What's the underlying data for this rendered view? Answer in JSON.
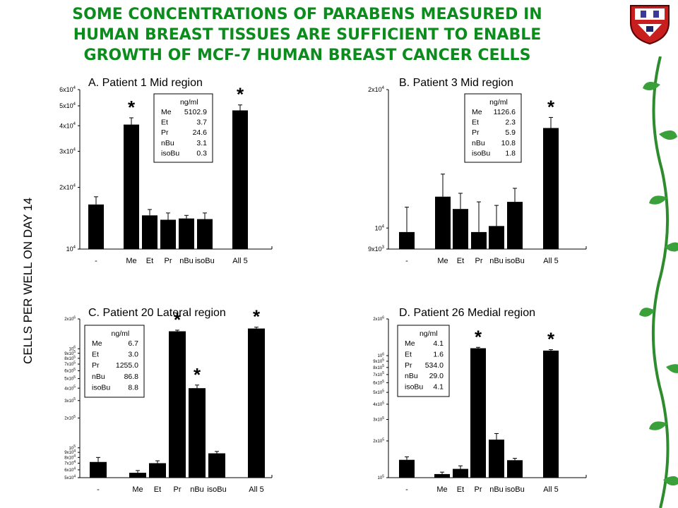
{
  "title_lines": [
    "SOME CONCENTRATIONS OF PARABENS MEASURED IN",
    "HUMAN BREAST TISSUES ARE SUFFICIENT TO ENABLE",
    "GROWTH OF MCF-7 HUMAN BREAST CANCER CELLS"
  ],
  "y_axis_label": "CELLS PER WELL ON DAY 14",
  "colors": {
    "title": "#0b8c1c",
    "bars": "#000000",
    "vine": "#2e8b2e"
  },
  "chart_data": [
    {
      "type": "bar",
      "title": "A. Patient 1 Mid region",
      "yscale": "log",
      "ylim": [
        10000,
        60000
      ],
      "yticks": [
        {
          "value": 10000,
          "label": "10",
          "exp": "4"
        },
        {
          "value": 20000,
          "label": "2x10",
          "exp": "4"
        },
        {
          "value": 30000,
          "label": "3x10",
          "exp": "4"
        },
        {
          "value": 40000,
          "label": "4x10",
          "exp": "4"
        },
        {
          "value": 50000,
          "label": "5x10",
          "exp": "4"
        },
        {
          "value": 60000,
          "label": "6x10",
          "exp": "4"
        }
      ],
      "categories": [
        "-",
        "Me",
        "Et",
        "Pr",
        "nBu",
        "isoBu",
        "All 5"
      ],
      "values": [
        16500,
        40500,
        14600,
        13900,
        14100,
        14000,
        47500
      ],
      "errors": [
        1500,
        3200,
        1000,
        1100,
        500,
        1000,
        3000
      ],
      "significant": [
        false,
        true,
        false,
        false,
        false,
        false,
        true
      ],
      "star": "*",
      "legend": {
        "header": "ng/ml",
        "rows": [
          [
            "Me",
            "5102.9"
          ],
          [
            "Et",
            "3.7"
          ],
          [
            "Pr",
            "24.6"
          ],
          [
            "nBu",
            "3.1"
          ],
          [
            "isoBu",
            "0.3"
          ]
        ]
      }
    },
    {
      "type": "bar",
      "title": "B. Patient 3 Mid region",
      "yscale": "log",
      "ylim": [
        9000,
        20000
      ],
      "yticks": [
        {
          "value": 9000,
          "label": "9x10",
          "exp": "3"
        },
        {
          "value": 10000,
          "label": "10",
          "exp": "4"
        },
        {
          "value": 20000,
          "label": "2x10",
          "exp": "4"
        }
      ],
      "categories": [
        "-",
        "Me",
        "Et",
        "Pr",
        "nBu",
        "isoBu",
        "All 5"
      ],
      "values": [
        9800,
        11700,
        11000,
        9800,
        10100,
        11400,
        16500
      ],
      "errors": [
        1300,
        1400,
        900,
        1600,
        1100,
        800,
        900
      ],
      "significant": [
        false,
        false,
        false,
        false,
        false,
        false,
        true
      ],
      "star": "*",
      "legend": {
        "header": "ng/ml",
        "rows": [
          [
            "Me",
            "1126.6"
          ],
          [
            "Et",
            "2.3"
          ],
          [
            "Pr",
            "5.9"
          ],
          [
            "nBu",
            "10.8"
          ],
          [
            "isoBu",
            "1.8"
          ]
        ]
      }
    },
    {
      "type": "bar",
      "title": "C. Patient 20 Lateral region",
      "yscale": "log",
      "ylim": [
        50000,
        2000000
      ],
      "yticks": [
        {
          "value": 50000,
          "label": "5x10",
          "exp": "4"
        },
        {
          "value": 60000,
          "label": "6x10",
          "exp": "4"
        },
        {
          "value": 70000,
          "label": "7x10",
          "exp": "4"
        },
        {
          "value": 80000,
          "label": "8x10",
          "exp": "4"
        },
        {
          "value": 90000,
          "label": "9x10",
          "exp": "4"
        },
        {
          "value": 100000,
          "label": "10",
          "exp": "5"
        },
        {
          "value": 200000,
          "label": "2x10",
          "exp": "5"
        },
        {
          "value": 300000,
          "label": "3x10",
          "exp": "5"
        },
        {
          "value": 400000,
          "label": "4x10",
          "exp": "5"
        },
        {
          "value": 500000,
          "label": "5x10",
          "exp": "5"
        },
        {
          "value": 600000,
          "label": "6x10",
          "exp": "5"
        },
        {
          "value": 700000,
          "label": "7x10",
          "exp": "5"
        },
        {
          "value": 800000,
          "label": "8x10",
          "exp": "5"
        },
        {
          "value": 900000,
          "label": "9x10",
          "exp": "5"
        },
        {
          "value": 1000000,
          "label": "10",
          "exp": "6"
        },
        {
          "value": 2000000,
          "label": "2x10",
          "exp": "6"
        }
      ],
      "categories": [
        "-",
        "Me",
        "Et",
        "Pr",
        "nBu",
        "isoBu",
        "All 5"
      ],
      "values": [
        72000,
        56000,
        70000,
        1500000,
        400000,
        88000,
        1600000
      ],
      "errors": [
        8000,
        3000,
        4000,
        40000,
        30000,
        4000,
        50000
      ],
      "significant": [
        false,
        false,
        false,
        true,
        true,
        false,
        true
      ],
      "star": "*",
      "legend": {
        "header": "ng/ml",
        "rows": [
          [
            "Me",
            "6.7"
          ],
          [
            "Et",
            "3.0"
          ],
          [
            "Pr",
            "1255.0"
          ],
          [
            "nBu",
            "86.8"
          ],
          [
            "isoBu",
            "8.8"
          ]
        ]
      }
    },
    {
      "type": "bar",
      "title": "D. Patient 26 Medial region",
      "yscale": "log",
      "ylim": [
        100000,
        2000000
      ],
      "yticks": [
        {
          "value": 100000,
          "label": "10",
          "exp": "5"
        },
        {
          "value": 200000,
          "label": "2x10",
          "exp": "5"
        },
        {
          "value": 300000,
          "label": "3x10",
          "exp": "5"
        },
        {
          "value": 400000,
          "label": "4x10",
          "exp": "5"
        },
        {
          "value": 500000,
          "label": "5x10",
          "exp": "5"
        },
        {
          "value": 600000,
          "label": "6x10",
          "exp": "5"
        },
        {
          "value": 700000,
          "label": "7x10",
          "exp": "5"
        },
        {
          "value": 800000,
          "label": "8x10",
          "exp": "5"
        },
        {
          "value": 900000,
          "label": "9x10",
          "exp": "5"
        },
        {
          "value": 1000000,
          "label": "10",
          "exp": "6"
        },
        {
          "value": 2000000,
          "label": "2x10",
          "exp": "6"
        }
      ],
      "categories": [
        "-",
        "Me",
        "Et",
        "Pr",
        "nBu",
        "isoBu",
        "All 5"
      ],
      "values": [
        140000,
        107000,
        118000,
        1150000,
        205000,
        139000,
        1100000
      ],
      "errors": [
        8000,
        4000,
        7000,
        20000,
        25000,
        5000,
        20000
      ],
      "significant": [
        false,
        false,
        false,
        true,
        false,
        false,
        true
      ],
      "star": "*",
      "legend": {
        "header": "ng/ml",
        "rows": [
          [
            "Me",
            "4.1"
          ],
          [
            "Et",
            "1.6"
          ],
          [
            "Pr",
            "534.0"
          ],
          [
            "nBu",
            "29.0"
          ],
          [
            "isoBu",
            "4.1"
          ]
        ]
      }
    }
  ]
}
